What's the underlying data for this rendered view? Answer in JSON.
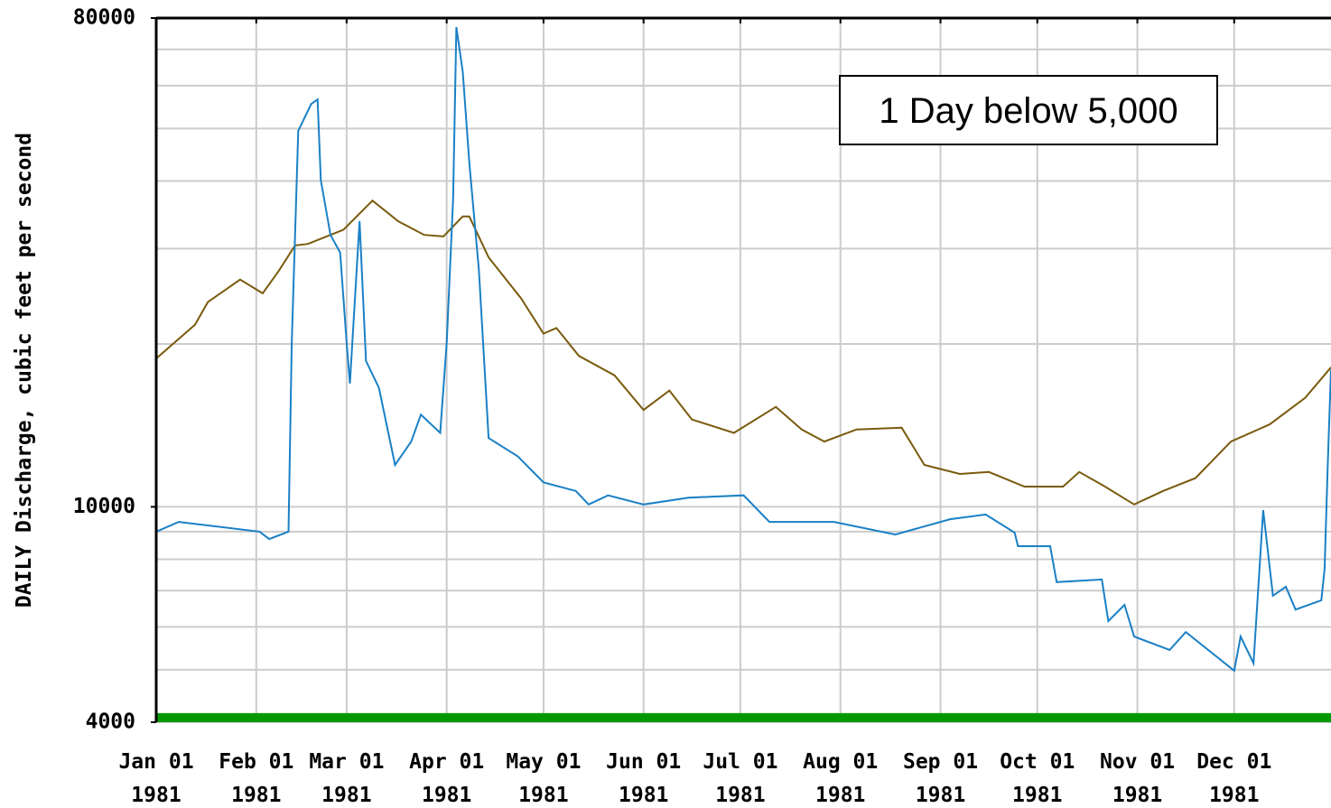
{
  "chart_data": {
    "type": "line",
    "y_label": "DAILY Discharge, cubic feet per second",
    "annotation": "1 Day below 5,000",
    "log_y": true,
    "grid": true,
    "xlim": [
      "1981-01-01",
      "1981-12-31"
    ],
    "ylim": [
      4000,
      80000
    ],
    "yticks": [
      4000,
      10000,
      80000
    ],
    "yminor": [
      5000,
      6000,
      7000,
      8000,
      9000,
      20000,
      30000,
      40000,
      50000,
      60000,
      70000
    ],
    "xticks": [
      {
        "value": "1981-01-01",
        "label": [
          "Jan 01",
          "1981"
        ]
      },
      {
        "value": "1981-02-01",
        "label": [
          "Feb 01",
          "1981"
        ]
      },
      {
        "value": "1981-03-01",
        "label": [
          "Mar 01",
          "1981"
        ]
      },
      {
        "value": "1981-04-01",
        "label": [
          "Apr 01",
          "1981"
        ]
      },
      {
        "value": "1981-05-01",
        "label": [
          "May 01",
          "1981"
        ]
      },
      {
        "value": "1981-06-01",
        "label": [
          "Jun 01",
          "1981"
        ]
      },
      {
        "value": "1981-07-01",
        "label": [
          "Jul 01",
          "1981"
        ]
      },
      {
        "value": "1981-08-01",
        "label": [
          "Aug 01",
          "1981"
        ]
      },
      {
        "value": "1981-09-01",
        "label": [
          "Sep 01",
          "1981"
        ]
      },
      {
        "value": "1981-10-01",
        "label": [
          "Oct 01",
          "1981"
        ]
      },
      {
        "value": "1981-11-01",
        "label": [
          "Nov 01",
          "1981"
        ]
      },
      {
        "value": "1981-12-01",
        "label": [
          "Dec 01",
          "1981"
        ]
      }
    ],
    "threshold": {
      "value": 4080,
      "color": "#009900"
    },
    "series": [
      {
        "color": "#7a5a0c",
        "x": [
          "1981-01-01",
          "1981-01-13",
          "1981-01-17",
          "1981-01-27",
          "1981-02-03",
          "1981-02-08",
          "1981-02-13",
          "1981-02-17",
          "1981-02-28",
          "1981-03-09",
          "1981-03-17",
          "1981-03-25",
          "1981-03-31",
          "1981-04-06",
          "1981-04-08",
          "1981-04-14",
          "1981-04-24",
          "1981-05-01",
          "1981-05-05",
          "1981-05-12",
          "1981-05-23",
          "1981-06-01",
          "1981-06-09",
          "1981-06-16",
          "1981-06-29",
          "1981-07-12",
          "1981-07-20",
          "1981-07-27",
          "1981-08-06",
          "1981-08-20",
          "1981-08-27",
          "1981-09-07",
          "1981-09-16",
          "1981-09-27",
          "1981-10-09",
          "1981-10-14",
          "1981-10-22",
          "1981-10-31",
          "1981-11-09",
          "1981-11-19",
          "1981-11-30",
          "1981-12-12",
          "1981-12-23",
          "1981-12-31"
        ],
        "values": [
          18800,
          21700,
          23900,
          26300,
          24800,
          27300,
          30400,
          30600,
          32500,
          36800,
          33700,
          31800,
          31600,
          34400,
          34400,
          28900,
          24300,
          20900,
          21400,
          19000,
          17500,
          15100,
          16400,
          14500,
          13700,
          15300,
          13900,
          13200,
          13900,
          14000,
          11950,
          11500,
          11600,
          10900,
          10900,
          11600,
          10900,
          10100,
          10700,
          11300,
          13200,
          14200,
          15900,
          18100
        ]
      },
      {
        "color": "#1a80c6",
        "x": [
          "1981-01-01",
          "1981-01-08",
          "1981-02-02",
          "1981-02-05",
          "1981-02-11",
          "1981-02-12",
          "1981-02-14",
          "1981-02-18",
          "1981-02-20",
          "1981-02-21",
          "1981-02-24",
          "1981-02-27",
          "1981-03-01",
          "1981-03-02",
          "1981-03-05",
          "1981-03-07",
          "1981-03-11",
          "1981-03-16",
          "1981-03-21",
          "1981-03-24",
          "1981-03-30",
          "1981-04-01",
          "1981-04-03",
          "1981-04-04",
          "1981-04-06",
          "1981-04-08",
          "1981-04-11",
          "1981-04-14",
          "1981-04-23",
          "1981-05-01",
          "1981-05-11",
          "1981-05-15",
          "1981-05-21",
          "1981-06-01",
          "1981-06-15",
          "1981-07-02",
          "1981-07-10",
          "1981-07-30",
          "1981-08-18",
          "1981-09-04",
          "1981-09-15",
          "1981-09-24",
          "1981-09-25",
          "1981-10-05",
          "1981-10-07",
          "1981-10-21",
          "1981-10-23",
          "1981-10-28",
          "1981-10-31",
          "1981-11-11",
          "1981-11-16",
          "1981-12-01",
          "1981-12-03",
          "1981-12-07",
          "1981-12-10",
          "1981-12-13",
          "1981-12-17",
          "1981-12-20",
          "1981-12-28",
          "1981-12-29",
          "1981-12-30",
          "1981-12-31"
        ],
        "values": [
          9000,
          9380,
          9000,
          8720,
          9000,
          20100,
          49500,
          55500,
          56600,
          40100,
          31800,
          29500,
          20100,
          16900,
          33700,
          18600,
          16600,
          11950,
          13200,
          14800,
          13700,
          20100,
          37100,
          77000,
          63600,
          43300,
          27300,
          13400,
          12400,
          11100,
          10700,
          10100,
          10500,
          10100,
          10400,
          10500,
          9380,
          9380,
          8890,
          9490,
          9680,
          8960,
          8460,
          8460,
          7260,
          7340,
          6150,
          6590,
          5760,
          5440,
          5870,
          4980,
          5760,
          5140,
          9860,
          6850,
          7120,
          6460,
          6720,
          7680,
          11950,
          17900
        ]
      }
    ]
  }
}
